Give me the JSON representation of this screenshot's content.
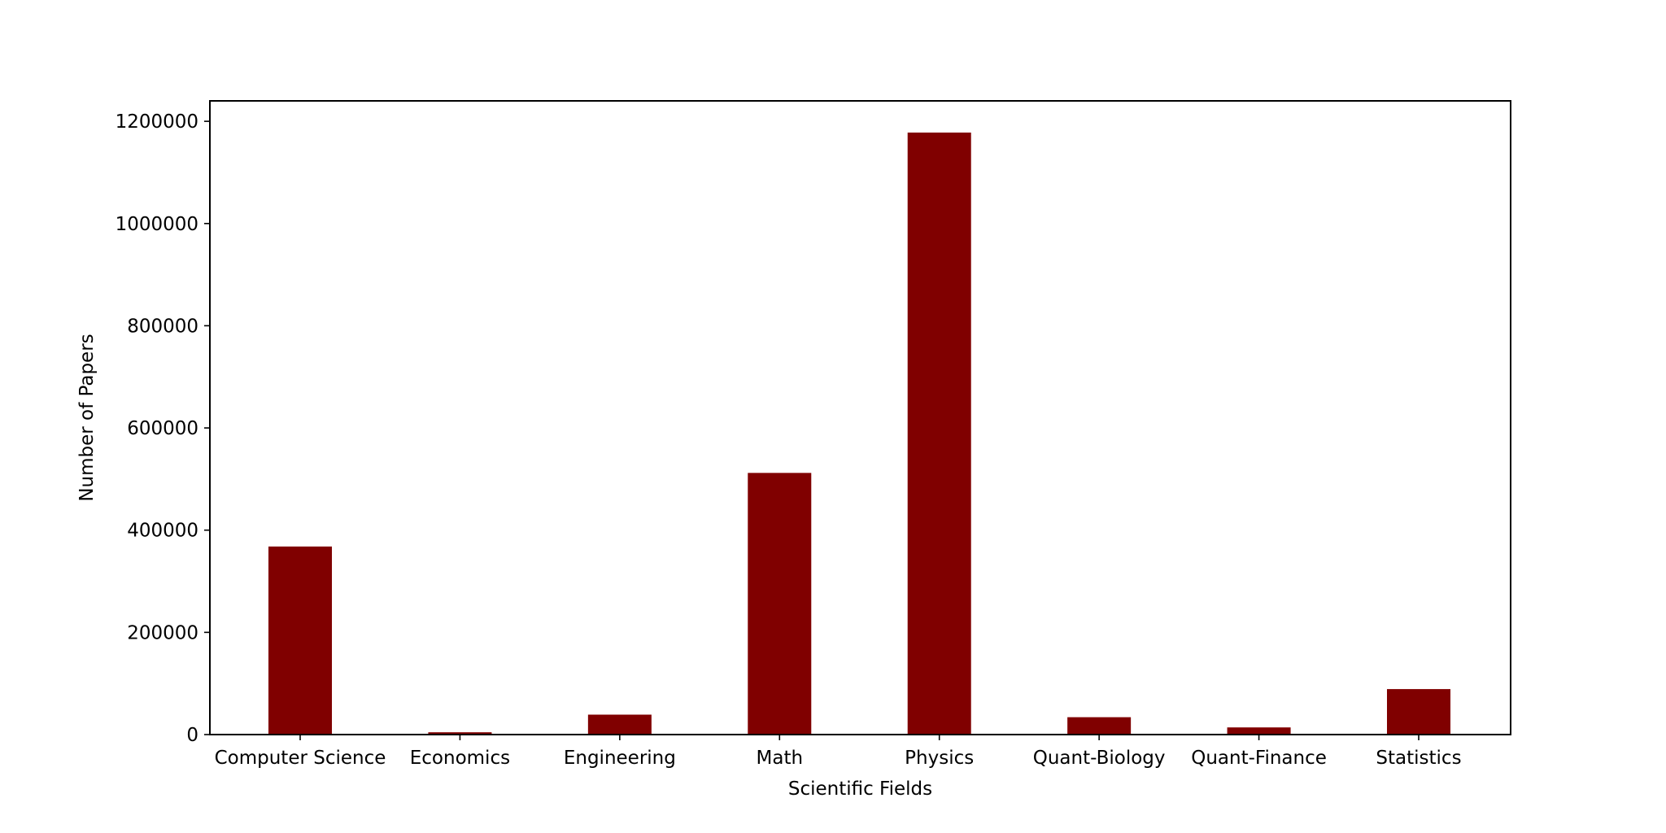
{
  "chart_data": {
    "type": "bar",
    "title": "",
    "xlabel": "Scientific Fields",
    "ylabel": "Number of Papers",
    "categories": [
      "Computer Science",
      "Economics",
      "Engineering",
      "Math",
      "Physics",
      "Quant-Biology",
      "Quant-Finance",
      "Statistics"
    ],
    "values": [
      368000,
      4500,
      39000,
      512000,
      1178000,
      34000,
      14000,
      89000
    ],
    "ylim": [
      0,
      1240000
    ],
    "yticks": [
      0,
      200000,
      400000,
      600000,
      800000,
      1000000,
      1200000
    ],
    "ytick_labels": [
      "0",
      "200000",
      "400000",
      "600000",
      "800000",
      "1000000",
      "1200000"
    ],
    "bar_color": "#800000",
    "grid": false,
    "legend": "none"
  }
}
